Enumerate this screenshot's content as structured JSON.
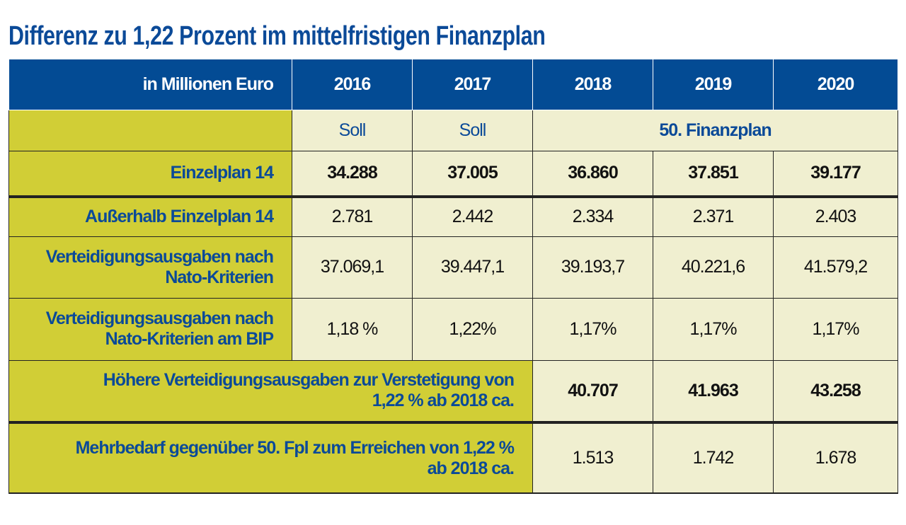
{
  "title": "Differenz zu 1,22 Prozent im mittelfristigen Finanzplan",
  "colors": {
    "header_bg": "#034b94",
    "label_bg": "#d1ce36",
    "cell_bg": "#f0efd0",
    "label_text": "#0b4a98"
  },
  "chart_data": {
    "type": "table",
    "title": "Differenz zu 1,22 Prozent im mittelfristigen Finanzplan",
    "header": {
      "label": "in Millionen Euro",
      "years": [
        "2016",
        "2017",
        "2018",
        "2019",
        "2020"
      ]
    },
    "status": {
      "y2016": "Soll",
      "y2017": "Soll",
      "plan": "50. Finanzplan"
    },
    "rows": [
      {
        "label": "Einzelplan 14",
        "values": [
          "34.288",
          "37.005",
          "36.860",
          "37.851",
          "39.177"
        ]
      },
      {
        "label": "Außerhalb Einzelplan 14",
        "values": [
          "2.781",
          "2.442",
          "2.334",
          "2.371",
          "2.403"
        ]
      },
      {
        "label_line1": "Verteidigungsausgaben nach",
        "label_line2": "Nato-Kriterien",
        "values": [
          "37.069,1",
          "39.447,1",
          "39.193,7",
          "40.221,6",
          "41.579,2"
        ]
      },
      {
        "label_line1": "Verteidigungsausgaben nach",
        "label_line2": "Nato-Kriterien am BIP",
        "values": [
          "1,18 %",
          "1,22%",
          "1,17%",
          "1,17%",
          "1,17%"
        ]
      },
      {
        "label_line1": "Höhere Verteidigungsausgaben zur Verstetigung von",
        "label_line2": "1,22 % ab 2018 ca.",
        "values": [
          "40.707",
          "41.963",
          "43.258"
        ]
      },
      {
        "label_line1": "Mehrbedarf gegenüber 50. Fpl zum Erreichen von 1,22 %",
        "label_line2": "ab 2018 ca.",
        "values": [
          "1.513",
          "1.742",
          "1.678"
        ]
      }
    ]
  }
}
